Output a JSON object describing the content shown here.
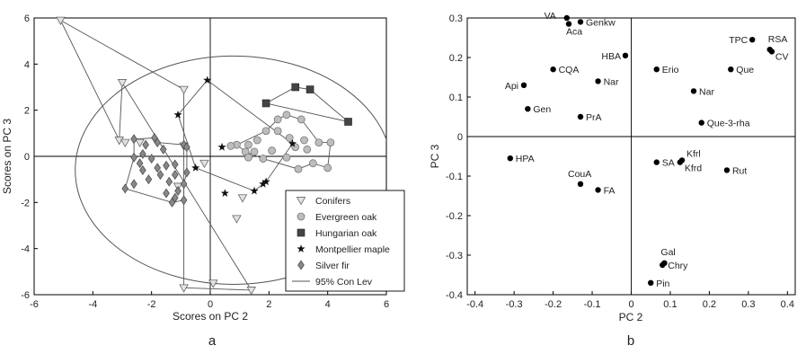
{
  "chart_data": [
    {
      "type": "scatter",
      "panel_label": "a",
      "xlabel": "Scores on PC 2",
      "ylabel": "Scores on PC 3",
      "xlim": [
        -6,
        6
      ],
      "ylim": [
        -6,
        6
      ],
      "x_ticks": [
        -6,
        -4,
        -2,
        0,
        2,
        4,
        6
      ],
      "y_ticks": [
        -6,
        -4,
        -2,
        0,
        2,
        4,
        6
      ],
      "ellipse_95": {
        "label": "95% Con Lev",
        "cx": 0.8,
        "cy": -0.6,
        "rx": 5.4,
        "ry": 4.95
      },
      "legend_position": "bottom-right",
      "series": [
        {
          "name": "Conifers",
          "marker": "triangle-down",
          "color": "#e3e3e3",
          "points": [
            [
              -5.1,
              5.9
            ],
            [
              -3,
              3.2
            ],
            [
              -0.9,
              2.9
            ],
            [
              -3.1,
              0.7
            ],
            [
              -2.9,
              0.6
            ],
            [
              -2.4,
              0.6
            ],
            [
              -0.9,
              0.45
            ],
            [
              -0.2,
              -0.3
            ],
            [
              -1.1,
              -1.3
            ],
            [
              1.1,
              -1.8
            ],
            [
              0.1,
              -5.5
            ],
            [
              -0.9,
              -5.7
            ],
            [
              1.4,
              -5.8
            ],
            [
              0.9,
              -2.7
            ]
          ],
          "hull_order": [
            0,
            2,
            11,
            12,
            1,
            3
          ]
        },
        {
          "name": "Evergreen oak",
          "marker": "circle",
          "color": "#bdbdbd",
          "points": [
            [
              1.9,
              1.1
            ],
            [
              2.3,
              1.6
            ],
            [
              2.6,
              1.8
            ],
            [
              3.1,
              1.6
            ],
            [
              2.3,
              1.1
            ],
            [
              2.7,
              0.8
            ],
            [
              3.2,
              0.7
            ],
            [
              3.7,
              0.6
            ],
            [
              4.1,
              0.6
            ],
            [
              1.3,
              0.5
            ],
            [
              1.6,
              0.7
            ],
            [
              0.9,
              0.5
            ],
            [
              0.7,
              0.45
            ],
            [
              2.1,
              0.25
            ],
            [
              2.9,
              0.4
            ],
            [
              3.3,
              0.3
            ],
            [
              1.2,
              0.2
            ],
            [
              1.5,
              0.2
            ],
            [
              2.6,
              -0.05
            ],
            [
              3.5,
              -0.3
            ],
            [
              4,
              -0.5
            ],
            [
              1.8,
              -0.1
            ],
            [
              1.3,
              -0.05
            ],
            [
              3,
              -0.55
            ]
          ],
          "hull_order": [
            0,
            1,
            2,
            3,
            7,
            8,
            20,
            19,
            23,
            21,
            16,
            11
          ]
        },
        {
          "name": "Hungarian oak",
          "marker": "square",
          "color": "#444444",
          "points": [
            [
              2.9,
              3
            ],
            [
              3.4,
              2.9
            ],
            [
              1.9,
              2.3
            ],
            [
              4.7,
              1.5
            ]
          ],
          "hull_order": [
            0,
            1,
            3,
            2
          ]
        },
        {
          "name": "Montpellier maple",
          "marker": "star",
          "color": "#111111",
          "points": [
            [
              -0.1,
              3.3
            ],
            [
              -1.1,
              1.8
            ],
            [
              2.8,
              0.55
            ],
            [
              0.4,
              0.4
            ],
            [
              -0.5,
              -0.5
            ],
            [
              1.8,
              -1.2
            ],
            [
              1.9,
              -1.1
            ],
            [
              1.5,
              -1.5
            ],
            [
              0.5,
              -1.6
            ]
          ],
          "hull_order": [
            0,
            2,
            6,
            7,
            4,
            1
          ]
        },
        {
          "name": "Silver fir",
          "marker": "diamond",
          "color": "#888888",
          "points": [
            [
              -1.9,
              0.8
            ],
            [
              -2.6,
              0.75
            ],
            [
              -1.8,
              0.6
            ],
            [
              -2.2,
              0.5
            ],
            [
              -1.6,
              0.3
            ],
            [
              -0.9,
              0.5
            ],
            [
              -0.8,
              0.4
            ],
            [
              -2.3,
              0.1
            ],
            [
              -2.6,
              -0.05
            ],
            [
              -2,
              -0.1
            ],
            [
              -1.5,
              -0.4
            ],
            [
              -1.2,
              -0.35
            ],
            [
              -2.3,
              -0.6
            ],
            [
              -1.7,
              -0.8
            ],
            [
              -1.2,
              -0.8
            ],
            [
              -0.8,
              -0.7
            ],
            [
              -2.1,
              -1
            ],
            [
              -1.4,
              -1.1
            ],
            [
              -0.9,
              -1.2
            ],
            [
              -1.5,
              -1.6
            ],
            [
              -1.2,
              -1.8
            ],
            [
              -0.9,
              -1.9
            ],
            [
              -1.3,
              -2
            ],
            [
              -2.6,
              -1.2
            ],
            [
              -2.9,
              -1.4
            ],
            [
              -1.8,
              -0.5
            ],
            [
              -2.4,
              -0.3
            ],
            [
              -1.1,
              -1.5
            ]
          ],
          "hull_order": [
            1,
            0,
            2,
            5,
            6,
            15,
            18,
            21,
            22,
            24,
            8
          ]
        }
      ],
      "legend": [
        {
          "label": "Conifers",
          "marker": "triangle-down"
        },
        {
          "label": "Evergreen oak",
          "marker": "circle"
        },
        {
          "label": "Hungarian oak",
          "marker": "square"
        },
        {
          "label": "Montpellier maple",
          "marker": "star"
        },
        {
          "label": "Silver fir",
          "marker": "diamond"
        },
        {
          "label": "95% Con Lev",
          "marker": "line"
        }
      ]
    },
    {
      "type": "scatter",
      "panel_label": "b",
      "xlabel": "PC 2",
      "ylabel": "PC 3",
      "xlim": [
        -0.42,
        0.42
      ],
      "ylim": [
        -0.4,
        0.3
      ],
      "x_ticks": [
        -0.4,
        -0.3,
        -0.2,
        -0.1,
        0,
        0.1,
        0.2,
        0.3,
        0.4
      ],
      "x_tick_labels": [
        "-0.4",
        "-0.3",
        "-0.2",
        "-0.1",
        "0",
        "0.1",
        "0.2",
        "0.3",
        "0.4"
      ],
      "y_ticks": [
        -0.4,
        -0.3,
        -0.2,
        -0.1,
        0,
        0.1,
        0.2,
        0.3
      ],
      "y_tick_labels": [
        "-0.4",
        "-0.3",
        "-0.2",
        "-0.1",
        "0",
        "0.1",
        "0.2",
        "0.3"
      ],
      "points": [
        {
          "label": "VA",
          "x": -0.165,
          "y": 0.3
        },
        {
          "label": "Aca",
          "x": -0.16,
          "y": 0.285
        },
        {
          "label": "Genkw",
          "x": -0.13,
          "y": 0.29
        },
        {
          "label": "HBA",
          "x": -0.015,
          "y": 0.205
        },
        {
          "label": "TPC",
          "x": 0.31,
          "y": 0.245
        },
        {
          "label": "RSA",
          "x": 0.355,
          "y": 0.22
        },
        {
          "label": "CV",
          "x": 0.36,
          "y": 0.215
        },
        {
          "label": "Que",
          "x": 0.255,
          "y": 0.17
        },
        {
          "label": "CQA",
          "x": -0.2,
          "y": 0.17
        },
        {
          "label": "Erio",
          "x": 0.065,
          "y": 0.17
        },
        {
          "label": "Api",
          "x": -0.275,
          "y": 0.13
        },
        {
          "label": "Nar",
          "x": -0.085,
          "y": 0.14
        },
        {
          "label": "Nar",
          "x": 0.16,
          "y": 0.115
        },
        {
          "label": "Gen",
          "x": -0.265,
          "y": 0.07
        },
        {
          "label": "PrA",
          "x": -0.13,
          "y": 0.05
        },
        {
          "label": "Que-3-rha",
          "x": 0.18,
          "y": 0.035
        },
        {
          "label": "HPA",
          "x": -0.31,
          "y": -0.055
        },
        {
          "label": "SA",
          "x": 0.065,
          "y": -0.065
        },
        {
          "label": "Kfrl",
          "x": 0.13,
          "y": -0.06
        },
        {
          "label": "Kfrd",
          "x": 0.125,
          "y": -0.065
        },
        {
          "label": "Rut",
          "x": 0.245,
          "y": -0.085
        },
        {
          "label": "CouA",
          "x": -0.13,
          "y": -0.12
        },
        {
          "label": "FA",
          "x": -0.085,
          "y": -0.135
        },
        {
          "label": "Gal",
          "x": 0.085,
          "y": -0.32
        },
        {
          "label": "Chry",
          "x": 0.08,
          "y": -0.325
        },
        {
          "label": "Pin",
          "x": 0.05,
          "y": -0.37
        }
      ]
    }
  ]
}
